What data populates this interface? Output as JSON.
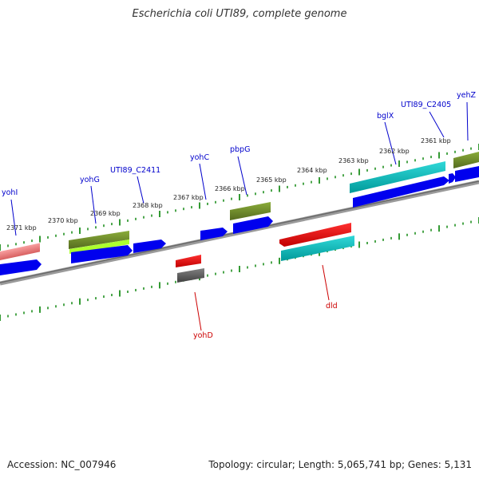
{
  "title": "Escherichia coli UTI89, complete genome",
  "footer": {
    "accession": "Accession: NC_007946",
    "summary": "Topology: circular; Length: 5,065,741 bp; Genes: 5,131"
  },
  "scale_labels": [
    "2371 kbp",
    "2370 kbp",
    "2369 kbp",
    "2368 kbp",
    "2367 kbp",
    "2366 kbp",
    "2365 kbp",
    "2364 kbp",
    "2363 kbp",
    "2362 kbp",
    "2361 kbp"
  ],
  "genes": [
    {
      "name": "yohI",
      "color": "#0000cc"
    },
    {
      "name": "yohG",
      "color": "#0000cc"
    },
    {
      "name": "UTI89_C2411",
      "color": "#0000cc"
    },
    {
      "name": "yohC",
      "color": "#0000cc"
    },
    {
      "name": "pbpG",
      "color": "#0000cc"
    },
    {
      "name": "bglX",
      "color": "#0000cc"
    },
    {
      "name": "UTI89_C2405",
      "color": "#0000cc"
    },
    {
      "name": "yehZ",
      "color": "#0000cc"
    },
    {
      "name": "yohD",
      "color": "#cc0000"
    },
    {
      "name": "dld",
      "color": "#cc0000"
    }
  ],
  "colors": {
    "backbone": "#808080",
    "tick": "#008000",
    "cds": "#0000ee",
    "gene_pink": "#f08080",
    "gene_olive": "#6b8e23",
    "gene_lime": "#9acd32",
    "gene_cyan": "#00cccc",
    "gene_red": "#ee0000",
    "gene_gray": "#606060"
  }
}
